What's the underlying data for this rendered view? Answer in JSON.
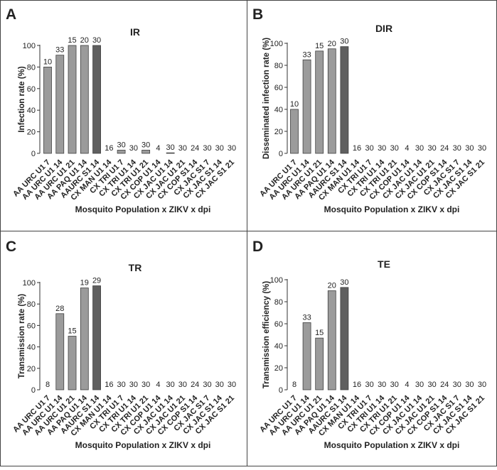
{
  "colors": {
    "light_bar": "#9b9b9b",
    "dark_bar": "#5f5f5f",
    "bar_edge": "#404040",
    "axis": "#333333",
    "text": "#222222",
    "panel_border": "#444444"
  },
  "shared_categories": [
    "AA URC U1 7",
    "AA URC U1 14",
    "AA URC U1 21",
    "AA PAQ U1 14",
    "AAURC S1 14",
    "CX MAN U1 14",
    "CX TRI U1 7",
    "CX TRI U1 14",
    "CX TRI U1 21",
    "CX COP U1 14",
    "CX JAC U1 14",
    "CX JAC U1 21",
    "CX COP S1 14",
    "CX JAC S1 7",
    "CX JAC S1 14",
    "CX JAC S1 21"
  ],
  "chart_data": [
    {
      "panel_letter": "A",
      "type": "bar",
      "title": "IR",
      "ylabel": "Infection rate (%)",
      "xlabel": "Mosquito Population x ZIKV x dpi",
      "ylim": [
        0,
        100
      ],
      "yticks": [
        0,
        20,
        40,
        60,
        80,
        100
      ],
      "categories": [
        "AA URC U1 7",
        "AA URC U1 14",
        "AA URC U1 21",
        "AA PAQ U1 14",
        "AAURC S1 14",
        "CX MAN U1 14",
        "CX TRI U1 7",
        "CX TRI U1 14",
        "CX TRI U1 21",
        "CX COP U1 14",
        "CX JAC U1 14",
        "CX JAC U1 21",
        "CX COP S1 14",
        "CX JAC S1 7",
        "CX JAC S1 14",
        "CX JAC S1 21"
      ],
      "values": [
        80,
        91,
        100,
        100,
        100,
        0,
        3,
        0,
        3,
        0,
        0.5,
        0,
        0,
        0,
        0,
        0
      ],
      "labels": [
        "10",
        "33",
        "15",
        "20",
        "30",
        "16",
        "30",
        "30",
        "30",
        "4",
        "30",
        "30",
        "24",
        "30",
        "30",
        "30"
      ],
      "highlight": [
        4
      ],
      "grid": false
    },
    {
      "panel_letter": "B",
      "type": "bar",
      "title": "DIR",
      "ylabel": "Disseminated infection rate (%)",
      "xlabel": "Mosquito Population x ZIKV x dpi",
      "ylim": [
        0,
        100
      ],
      "yticks": [
        0,
        20,
        40,
        60,
        80,
        100
      ],
      "categories": [
        "AA URC U1 7",
        "AA URC U1 14",
        "AA URC U1 21",
        "AA PAQ U1 14",
        "AAURC S1 14",
        "CX MAN U1 14",
        "CX TRI U1 7",
        "CX TRI U1 14",
        "CX TRI U1 21",
        "CX COP U1 14",
        "CX JAC U1 14",
        "CX JAC U1 21",
        "CX COP S1 14",
        "CX JAC S1 7",
        "CX JAC S1 14",
        "CX JAC S1 21"
      ],
      "values": [
        40,
        85,
        93,
        95,
        97,
        0,
        0,
        0,
        0,
        0,
        0,
        0,
        0,
        0,
        0,
        0
      ],
      "labels": [
        "10",
        "33",
        "15",
        "20",
        "30",
        "16",
        "30",
        "30",
        "30",
        "4",
        "30",
        "30",
        "24",
        "30",
        "30",
        "30"
      ],
      "highlight": [
        4
      ],
      "grid": false
    },
    {
      "panel_letter": "C",
      "type": "bar",
      "title": "TR",
      "ylabel": "Transmission rate (%)",
      "xlabel": "Mosquito Population x ZIKV x dpi",
      "ylim": [
        0,
        100
      ],
      "yticks": [
        0,
        20,
        40,
        60,
        80,
        100
      ],
      "categories": [
        "AA URC U1 7",
        "AA URC U1 14",
        "AA URC U1 21",
        "AA PAQ U1 14",
        "AAURC S1 14",
        "CX MAN U1 14",
        "CX TRI U1 7",
        "CX TRI U1 14",
        "CX TRI U1 21",
        "CX COP U1 14",
        "CX JAC U1 14",
        "CX JAC U1 21",
        "CX COP S1 14",
        "CX JAC S1 7",
        "CX JAC S1 14",
        "CX JAC S1 21"
      ],
      "values": [
        0,
        71,
        50,
        95,
        97,
        0,
        0,
        0,
        0,
        0,
        0,
        0,
        0,
        0,
        0,
        0
      ],
      "labels": [
        "8",
        "28",
        "15",
        "19",
        "29",
        "16",
        "30",
        "30",
        "30",
        "4",
        "30",
        "30",
        "24",
        "30",
        "30",
        "30"
      ],
      "highlight": [
        4
      ],
      "grid": false
    },
    {
      "panel_letter": "D",
      "type": "bar",
      "title": "TE",
      "ylabel": "Transmission efficiency (%)",
      "xlabel": "Mosquito Population x ZIKV x dpi",
      "ylim": [
        0,
        100
      ],
      "yticks": [
        0,
        20,
        40,
        60,
        80,
        100
      ],
      "categories": [
        "AA URC U1 7",
        "AA URC U1 14",
        "AA URC U1 21",
        "AA PAQ U1 14",
        "AAURC S1 14",
        "CX MAN U1 14",
        "CX TRI U1 7",
        "CX TRI U1 14",
        "CX TRI U1 21",
        "CX COP U1 14",
        "CX JAC U1 14",
        "CX JAC U1 21",
        "CX COP S1 14",
        "CX JAC S1 7",
        "CX JAC S1 14",
        "CX JAC S1 21"
      ],
      "values": [
        0,
        61,
        47,
        90,
        93,
        0,
        0,
        0,
        0,
        0,
        0,
        0,
        0,
        0,
        0,
        0
      ],
      "labels": [
        "8",
        "33",
        "15",
        "20",
        "30",
        "16",
        "30",
        "30",
        "30",
        "4",
        "30",
        "30",
        "24",
        "30",
        "30",
        "30"
      ],
      "highlight": [
        4
      ],
      "grid": false
    }
  ]
}
